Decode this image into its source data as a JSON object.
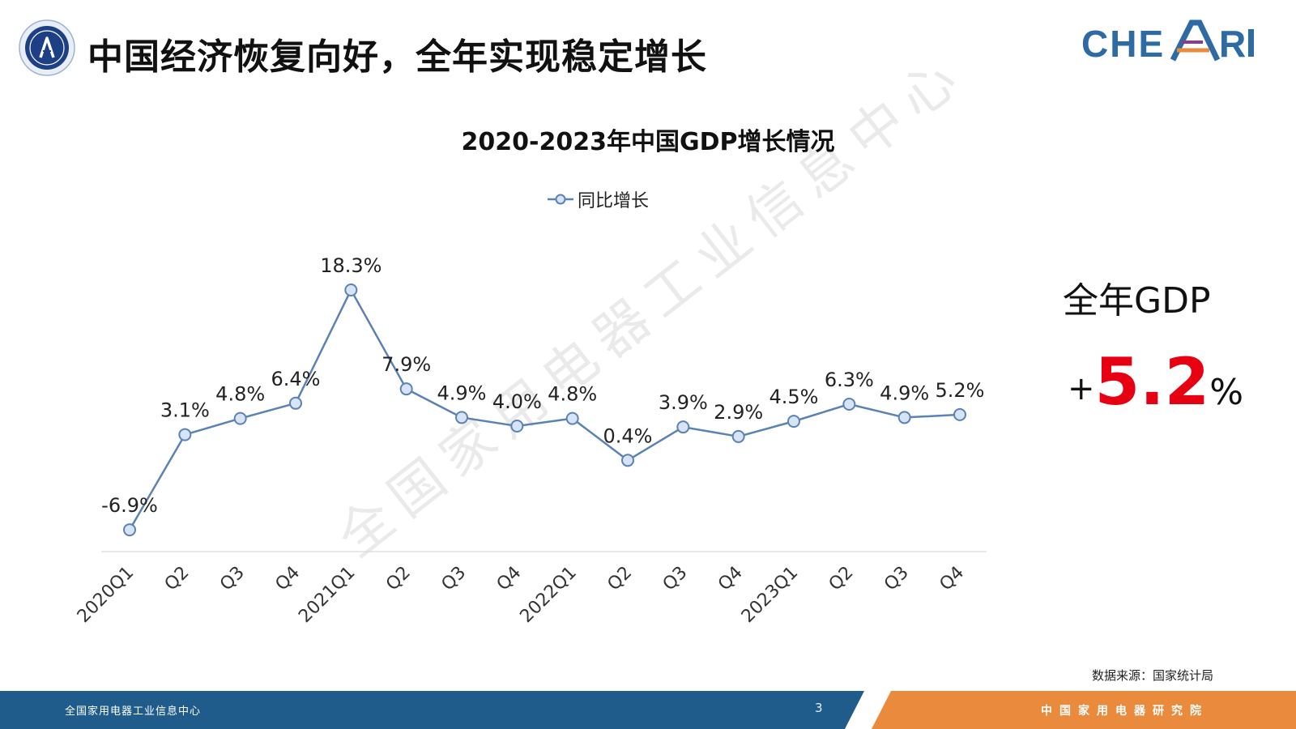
{
  "header": {
    "title": "中国经济恢复向好，全年实现稳定增长",
    "brand": "CHEARI"
  },
  "colors": {
    "series": "#5b82b4",
    "point_fill": "#d6e4f5",
    "highlight": "#e60012",
    "footer_left": "#1f5c8b",
    "footer_right": "#ea8a3c"
  },
  "chart_data": {
    "type": "line",
    "title": "2020-2023年中国GDP增长情况",
    "categories": [
      "2020Q1",
      "Q2",
      "Q3",
      "Q4",
      "2021Q1",
      "Q2",
      "Q3",
      "Q4",
      "2022Q1",
      "Q2",
      "Q3",
      "Q4",
      "2023Q1",
      "Q2",
      "Q3",
      "Q4"
    ],
    "series": [
      {
        "name": "同比增长",
        "values": [
          -6.9,
          3.1,
          4.8,
          6.4,
          18.3,
          7.9,
          4.9,
          4.0,
          4.8,
          0.4,
          3.9,
          2.9,
          4.5,
          6.3,
          4.9,
          5.2
        ],
        "labels": [
          "-6.9%",
          "3.1%",
          "4.8%",
          "6.4%",
          "18.3%",
          "7.9%",
          "4.9%",
          "4.0%",
          "4.8%",
          "0.4%",
          "3.9%",
          "2.9%",
          "4.5%",
          "6.3%",
          "4.9%",
          "5.2%"
        ]
      }
    ],
    "ylim": [
      -8,
      20
    ],
    "grid": false,
    "legend_position": "top"
  },
  "summary": {
    "label": "全年GDP",
    "plus": "+",
    "value": "5.2",
    "unit": "%"
  },
  "source": "数据来源：国家统计局",
  "footer": {
    "left_text": "全国家用电器工业信息中心",
    "page_number": "3",
    "right_text": "中国家用电器研究院"
  }
}
